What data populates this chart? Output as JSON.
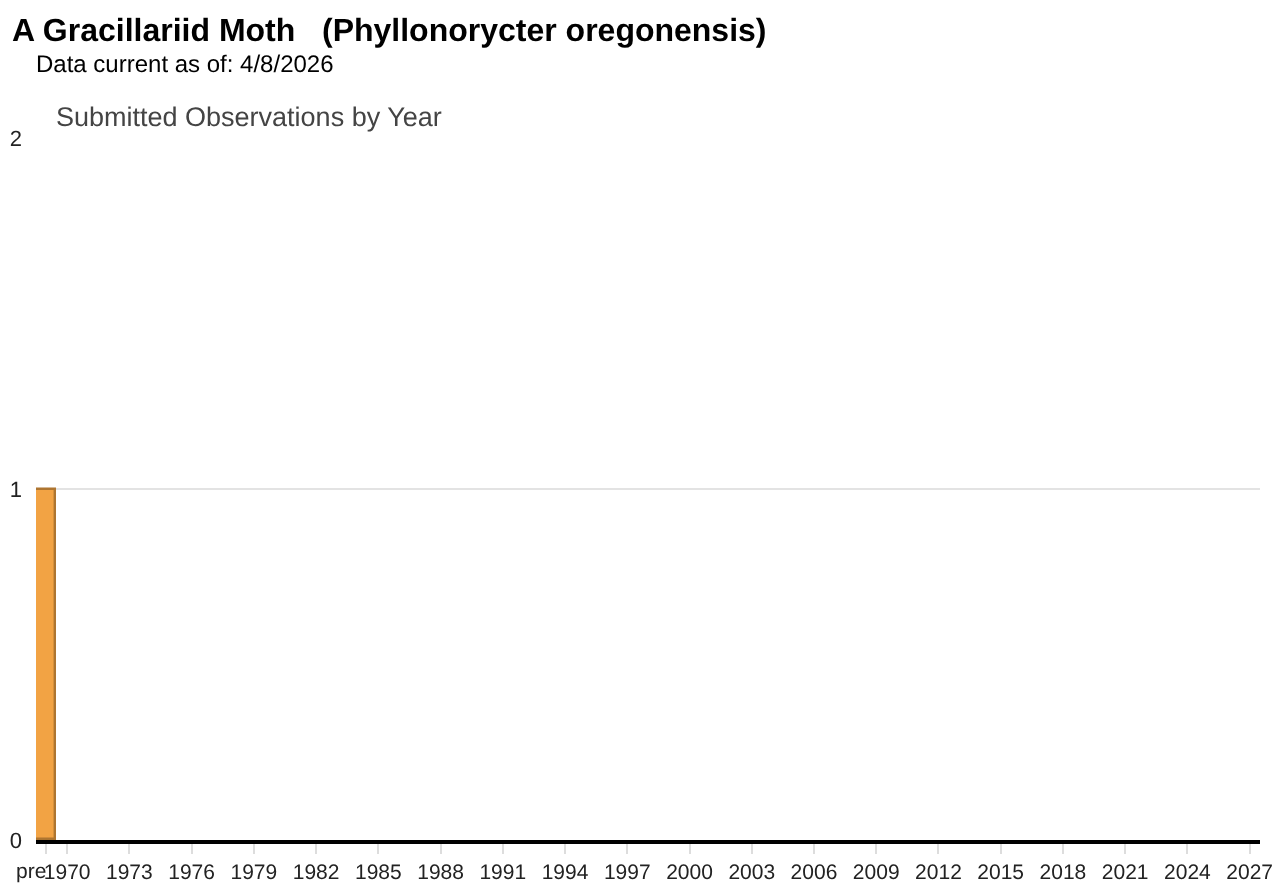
{
  "chart_data": {
    "type": "bar",
    "title": "A Gracillariid Moth   (Phyllonorycter oregonensis)",
    "subtitle": "Data current as of: 4/8/2026",
    "annotations": [
      "Submitted Observations by Year"
    ],
    "categories": [
      "pre",
      "1970",
      null,
      null,
      "1973",
      null,
      null,
      "1976",
      null,
      null,
      "1979",
      null,
      null,
      "1982",
      null,
      null,
      "1985",
      null,
      null,
      "1988",
      null,
      null,
      "1991",
      null,
      null,
      "1994",
      null,
      null,
      "1997",
      null,
      null,
      "2000",
      null,
      null,
      "2003",
      null,
      null,
      "2006",
      null,
      null,
      "2009",
      null,
      null,
      "2012",
      null,
      null,
      "2015",
      null,
      null,
      "2018",
      null,
      null,
      "2021",
      null,
      null,
      "2024",
      null,
      null,
      "2027"
    ],
    "values": [
      1,
      0,
      0,
      0,
      0,
      0,
      0,
      0,
      0,
      0,
      0,
      0,
      0,
      0,
      0,
      0,
      0,
      0,
      0,
      0,
      0,
      0,
      0,
      0,
      0,
      0,
      0,
      0,
      0,
      0,
      0,
      0,
      0,
      0,
      0,
      0,
      0,
      0,
      0,
      0,
      0,
      0,
      0,
      0,
      0,
      0,
      0,
      0,
      0,
      0,
      0,
      0,
      0,
      0,
      0,
      0,
      0,
      0,
      0
    ],
    "color": "#f2a344",
    "ylim": [
      0,
      2
    ],
    "yticks": [
      0,
      1,
      2
    ],
    "grid": "y"
  }
}
